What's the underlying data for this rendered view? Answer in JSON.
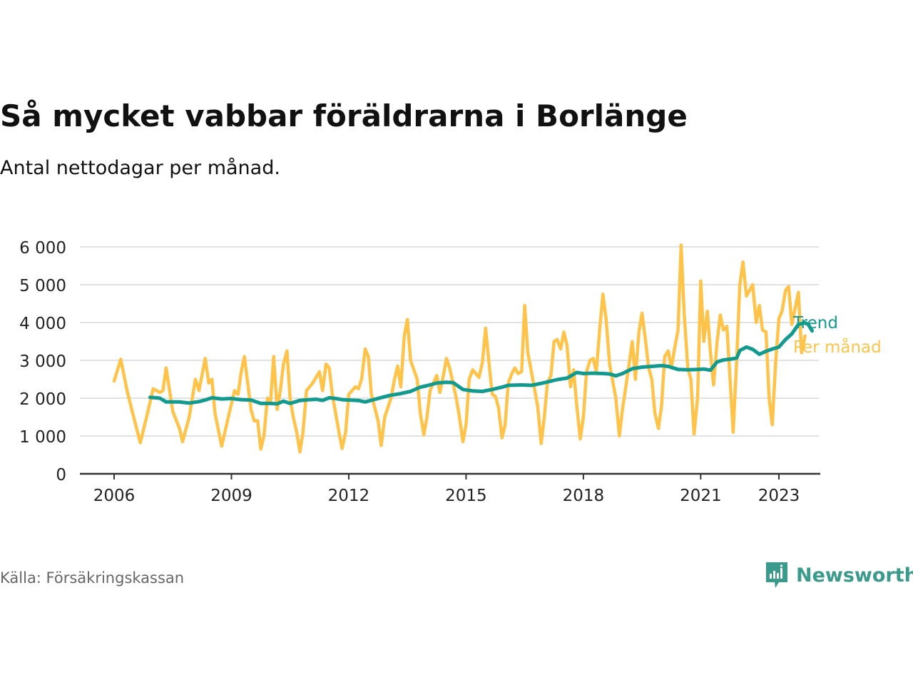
{
  "title": "Så mycket vabbar föräldrarna i Borlänge",
  "subtitle": "Antal nettodagar per månad.",
  "source": "Källa: Försäkringskassan",
  "brand": {
    "name": "Newsworthy",
    "icon": "newsworthy-logo-icon"
  },
  "colors": {
    "monthly": "#ffc34a",
    "trend": "#129a8e",
    "grid": "#d9d9d9",
    "axis": "#333333"
  },
  "chart_data": {
    "type": "line",
    "title": "Så mycket vabbar föräldrarna i Borlänge",
    "subtitle": "Antal nettodagar per månad.",
    "ylim": [
      0,
      6000
    ],
    "yticks": [
      0,
      1000,
      2000,
      3000,
      4000,
      5000,
      6000
    ],
    "ytick_labels": [
      "0",
      "1 000",
      "2 000",
      "3 000",
      "4 000",
      "5 000",
      "6 000"
    ],
    "xlim": [
      2005.5,
      2023.85
    ],
    "xticks": [
      2006,
      2009,
      2012,
      2015,
      2018,
      2021,
      2023
    ],
    "xtick_labels": [
      "2006",
      "2009",
      "2012",
      "2015",
      "2018",
      "2021",
      "2023"
    ],
    "grid": "horizontal",
    "legend": "inline-right",
    "series": [
      {
        "name": "Per månad",
        "color": "#ffc34a",
        "points": [
          [
            2006.0,
            2450
          ],
          [
            2006.17,
            3030
          ],
          [
            2006.33,
            2200
          ],
          [
            2006.5,
            1500
          ],
          [
            2006.67,
            820
          ],
          [
            2006.83,
            1500
          ],
          [
            2007.0,
            2250
          ],
          [
            2007.17,
            2150
          ],
          [
            2007.25,
            2200
          ],
          [
            2007.33,
            2800
          ],
          [
            2007.5,
            1650
          ],
          [
            2007.67,
            1200
          ],
          [
            2007.75,
            850
          ],
          [
            2007.92,
            1500
          ],
          [
            2008.08,
            2500
          ],
          [
            2008.17,
            2200
          ],
          [
            2008.33,
            3050
          ],
          [
            2008.42,
            2400
          ],
          [
            2008.5,
            2500
          ],
          [
            2008.58,
            1600
          ],
          [
            2008.75,
            730
          ],
          [
            2008.92,
            1500
          ],
          [
            2009.08,
            2200
          ],
          [
            2009.17,
            2100
          ],
          [
            2009.25,
            2700
          ],
          [
            2009.33,
            3100
          ],
          [
            2009.5,
            1700
          ],
          [
            2009.58,
            1400
          ],
          [
            2009.67,
            1400
          ],
          [
            2009.75,
            650
          ],
          [
            2009.83,
            1000
          ],
          [
            2009.92,
            2000
          ],
          [
            2010.0,
            1900
          ],
          [
            2010.08,
            3100
          ],
          [
            2010.17,
            1700
          ],
          [
            2010.25,
            2200
          ],
          [
            2010.33,
            2900
          ],
          [
            2010.42,
            3250
          ],
          [
            2010.5,
            2000
          ],
          [
            2010.58,
            1500
          ],
          [
            2010.67,
            1100
          ],
          [
            2010.75,
            580
          ],
          [
            2010.83,
            1100
          ],
          [
            2010.92,
            2200
          ],
          [
            2011.08,
            2400
          ],
          [
            2011.25,
            2700
          ],
          [
            2011.33,
            2200
          ],
          [
            2011.42,
            2900
          ],
          [
            2011.5,
            2800
          ],
          [
            2011.58,
            2100
          ],
          [
            2011.75,
            1100
          ],
          [
            2011.83,
            670
          ],
          [
            2011.92,
            1100
          ],
          [
            2012.0,
            2100
          ],
          [
            2012.17,
            2300
          ],
          [
            2012.25,
            2250
          ],
          [
            2012.33,
            2500
          ],
          [
            2012.42,
            3300
          ],
          [
            2012.5,
            3100
          ],
          [
            2012.58,
            2100
          ],
          [
            2012.75,
            1400
          ],
          [
            2012.83,
            750
          ],
          [
            2012.92,
            1500
          ],
          [
            2013.08,
            2000
          ],
          [
            2013.17,
            2500
          ],
          [
            2013.25,
            2850
          ],
          [
            2013.33,
            2300
          ],
          [
            2013.42,
            3650
          ],
          [
            2013.5,
            4080
          ],
          [
            2013.58,
            3000
          ],
          [
            2013.75,
            2500
          ],
          [
            2013.83,
            1600
          ],
          [
            2013.92,
            1030
          ],
          [
            2014.0,
            1500
          ],
          [
            2014.08,
            2200
          ],
          [
            2014.25,
            2600
          ],
          [
            2014.33,
            2150
          ],
          [
            2014.42,
            2600
          ],
          [
            2014.5,
            3050
          ],
          [
            2014.58,
            2800
          ],
          [
            2014.75,
            2000
          ],
          [
            2014.83,
            1500
          ],
          [
            2014.92,
            850
          ],
          [
            2015.0,
            1300
          ],
          [
            2015.08,
            2500
          ],
          [
            2015.17,
            2750
          ],
          [
            2015.33,
            2550
          ],
          [
            2015.42,
            2950
          ],
          [
            2015.5,
            3850
          ],
          [
            2015.58,
            3000
          ],
          [
            2015.67,
            2100
          ],
          [
            2015.75,
            2050
          ],
          [
            2015.83,
            1750
          ],
          [
            2015.92,
            950
          ],
          [
            2016.0,
            1300
          ],
          [
            2016.08,
            2400
          ],
          [
            2016.17,
            2650
          ],
          [
            2016.25,
            2800
          ],
          [
            2016.33,
            2650
          ],
          [
            2016.42,
            2700
          ],
          [
            2016.5,
            4450
          ],
          [
            2016.58,
            3200
          ],
          [
            2016.67,
            2700
          ],
          [
            2016.83,
            1800
          ],
          [
            2016.92,
            800
          ],
          [
            2017.0,
            1500
          ],
          [
            2017.08,
            2400
          ],
          [
            2017.17,
            2600
          ],
          [
            2017.25,
            3500
          ],
          [
            2017.33,
            3550
          ],
          [
            2017.42,
            3300
          ],
          [
            2017.5,
            3750
          ],
          [
            2017.58,
            3400
          ],
          [
            2017.67,
            2300
          ],
          [
            2017.75,
            2750
          ],
          [
            2017.83,
            1800
          ],
          [
            2017.92,
            920
          ],
          [
            2018.0,
            1500
          ],
          [
            2018.08,
            2700
          ],
          [
            2018.17,
            3000
          ],
          [
            2018.25,
            3050
          ],
          [
            2018.33,
            2700
          ],
          [
            2018.42,
            3850
          ],
          [
            2018.5,
            4750
          ],
          [
            2018.58,
            4100
          ],
          [
            2018.67,
            2900
          ],
          [
            2018.83,
            2000
          ],
          [
            2018.92,
            1000
          ],
          [
            2019.0,
            1700
          ],
          [
            2019.17,
            2900
          ],
          [
            2019.25,
            3500
          ],
          [
            2019.33,
            2500
          ],
          [
            2019.42,
            3750
          ],
          [
            2019.5,
            4250
          ],
          [
            2019.58,
            3600
          ],
          [
            2019.67,
            2800
          ],
          [
            2019.75,
            2500
          ],
          [
            2019.83,
            1600
          ],
          [
            2019.92,
            1200
          ],
          [
            2020.0,
            1800
          ],
          [
            2020.08,
            3100
          ],
          [
            2020.17,
            3250
          ],
          [
            2020.25,
            2800
          ],
          [
            2020.33,
            3300
          ],
          [
            2020.42,
            3800
          ],
          [
            2020.5,
            6050
          ],
          [
            2020.58,
            4200
          ],
          [
            2020.67,
            2800
          ],
          [
            2020.75,
            2500
          ],
          [
            2020.83,
            1050
          ],
          [
            2020.92,
            2000
          ],
          [
            2021.0,
            5100
          ],
          [
            2021.08,
            3500
          ],
          [
            2021.17,
            4300
          ],
          [
            2021.25,
            3200
          ],
          [
            2021.33,
            2350
          ],
          [
            2021.42,
            3500
          ],
          [
            2021.5,
            4200
          ],
          [
            2021.58,
            3800
          ],
          [
            2021.67,
            3900
          ],
          [
            2021.75,
            2500
          ],
          [
            2021.83,
            1100
          ],
          [
            2021.92,
            3000
          ],
          [
            2022.0,
            5000
          ],
          [
            2022.08,
            5600
          ],
          [
            2022.17,
            4700
          ],
          [
            2022.25,
            4850
          ],
          [
            2022.33,
            5000
          ],
          [
            2022.42,
            4000
          ],
          [
            2022.5,
            4450
          ],
          [
            2022.58,
            3800
          ],
          [
            2022.67,
            3750
          ],
          [
            2022.75,
            2000
          ],
          [
            2022.83,
            1300
          ],
          [
            2022.92,
            3000
          ],
          [
            2023.0,
            4100
          ],
          [
            2023.08,
            4300
          ],
          [
            2023.17,
            4850
          ],
          [
            2023.25,
            4950
          ],
          [
            2023.33,
            3950
          ],
          [
            2023.42,
            4400
          ],
          [
            2023.5,
            4800
          ],
          [
            2023.58,
            3200
          ],
          [
            2023.67,
            3650
          ]
        ]
      },
      {
        "name": "Trend",
        "color": "#129a8e",
        "points": [
          [
            2006.92,
            2020
          ],
          [
            2007.17,
            2000
          ],
          [
            2007.33,
            1900
          ],
          [
            2007.67,
            1900
          ],
          [
            2007.92,
            1870
          ],
          [
            2008.17,
            1910
          ],
          [
            2008.33,
            1950
          ],
          [
            2008.5,
            2010
          ],
          [
            2008.75,
            1980
          ],
          [
            2009.0,
            1990
          ],
          [
            2009.25,
            1960
          ],
          [
            2009.5,
            1950
          ],
          [
            2009.75,
            1860
          ],
          [
            2010.0,
            1860
          ],
          [
            2010.17,
            1850
          ],
          [
            2010.33,
            1920
          ],
          [
            2010.5,
            1860
          ],
          [
            2010.75,
            1940
          ],
          [
            2011.0,
            1960
          ],
          [
            2011.17,
            1970
          ],
          [
            2011.33,
            1940
          ],
          [
            2011.5,
            2010
          ],
          [
            2011.67,
            1990
          ],
          [
            2011.83,
            1960
          ],
          [
            2012.0,
            1950
          ],
          [
            2012.25,
            1940
          ],
          [
            2012.42,
            1900
          ],
          [
            2012.67,
            1970
          ],
          [
            2012.92,
            2040
          ],
          [
            2013.08,
            2080
          ],
          [
            2013.33,
            2120
          ],
          [
            2013.58,
            2180
          ],
          [
            2013.83,
            2290
          ],
          [
            2014.0,
            2330
          ],
          [
            2014.25,
            2400
          ],
          [
            2014.5,
            2420
          ],
          [
            2014.67,
            2410
          ],
          [
            2014.92,
            2230
          ],
          [
            2015.17,
            2190
          ],
          [
            2015.42,
            2180
          ],
          [
            2015.67,
            2230
          ],
          [
            2015.92,
            2290
          ],
          [
            2016.08,
            2340
          ],
          [
            2016.42,
            2350
          ],
          [
            2016.67,
            2340
          ],
          [
            2016.92,
            2390
          ],
          [
            2017.17,
            2450
          ],
          [
            2017.33,
            2490
          ],
          [
            2017.58,
            2530
          ],
          [
            2017.83,
            2680
          ],
          [
            2018.0,
            2650
          ],
          [
            2018.25,
            2660
          ],
          [
            2018.5,
            2650
          ],
          [
            2018.67,
            2640
          ],
          [
            2018.83,
            2590
          ],
          [
            2019.0,
            2650
          ],
          [
            2019.25,
            2780
          ],
          [
            2019.5,
            2820
          ],
          [
            2019.75,
            2840
          ],
          [
            2020.0,
            2860
          ],
          [
            2020.17,
            2840
          ],
          [
            2020.42,
            2760
          ],
          [
            2020.67,
            2750
          ],
          [
            2020.92,
            2760
          ],
          [
            2021.08,
            2770
          ],
          [
            2021.25,
            2740
          ],
          [
            2021.42,
            2960
          ],
          [
            2021.58,
            3010
          ],
          [
            2021.75,
            3030
          ],
          [
            2021.92,
            3060
          ],
          [
            2022.0,
            3260
          ],
          [
            2022.17,
            3350
          ],
          [
            2022.33,
            3290
          ],
          [
            2022.5,
            3160
          ],
          [
            2022.67,
            3240
          ],
          [
            2022.83,
            3300
          ],
          [
            2023.0,
            3350
          ],
          [
            2023.17,
            3550
          ],
          [
            2023.33,
            3700
          ],
          [
            2023.5,
            3950
          ],
          [
            2023.67,
            3990
          ],
          [
            2023.75,
            3950
          ],
          [
            2023.85,
            3780
          ]
        ]
      }
    ],
    "labels": {
      "trend": "Trend",
      "monthly": "Per månad"
    }
  }
}
